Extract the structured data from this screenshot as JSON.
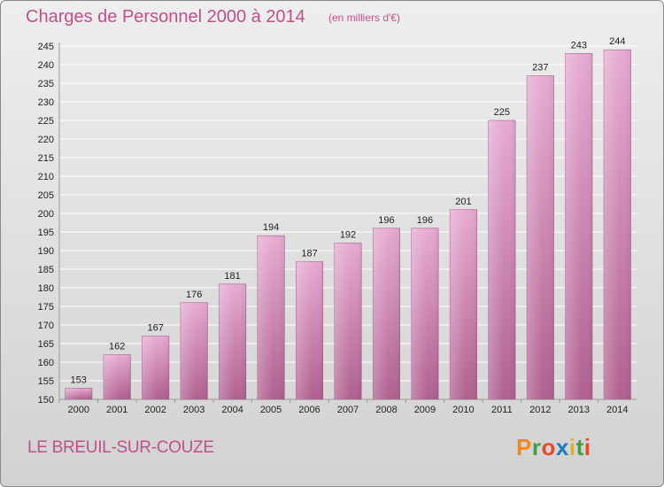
{
  "header": {
    "title": "Charges de Personnel 2000 à 2014",
    "subtitle": "(en milliers d'€)"
  },
  "footer": {
    "commune": "LE BREUIL-SUR-COUZE",
    "logo_letters": [
      "P",
      "r",
      "o",
      "x",
      "i",
      "t",
      "i"
    ],
    "logo_colors": [
      "#f08a1c",
      "#3ca03c",
      "#e84a2c",
      "#1e78c8",
      "#e8b01c",
      "#3ca03c",
      "#e84a2c"
    ]
  },
  "chart_data": {
    "type": "bar",
    "title": "Charges de Personnel 2000 à 2014",
    "subtitle": "(en milliers d'€)",
    "categories": [
      "2000",
      "2001",
      "2002",
      "2003",
      "2004",
      "2005",
      "2006",
      "2007",
      "2008",
      "2009",
      "2010",
      "2011",
      "2012",
      "2013",
      "2014"
    ],
    "values": [
      153,
      162,
      167,
      176,
      181,
      194,
      187,
      192,
      196,
      196,
      201,
      225,
      237,
      243,
      244
    ],
    "ylim": [
      150,
      245
    ],
    "yticks": [
      150,
      155,
      160,
      165,
      170,
      175,
      180,
      185,
      190,
      195,
      200,
      205,
      210,
      215,
      220,
      225,
      230,
      235,
      240,
      245
    ],
    "grid": true,
    "bar_color": "#e0a0c8"
  }
}
